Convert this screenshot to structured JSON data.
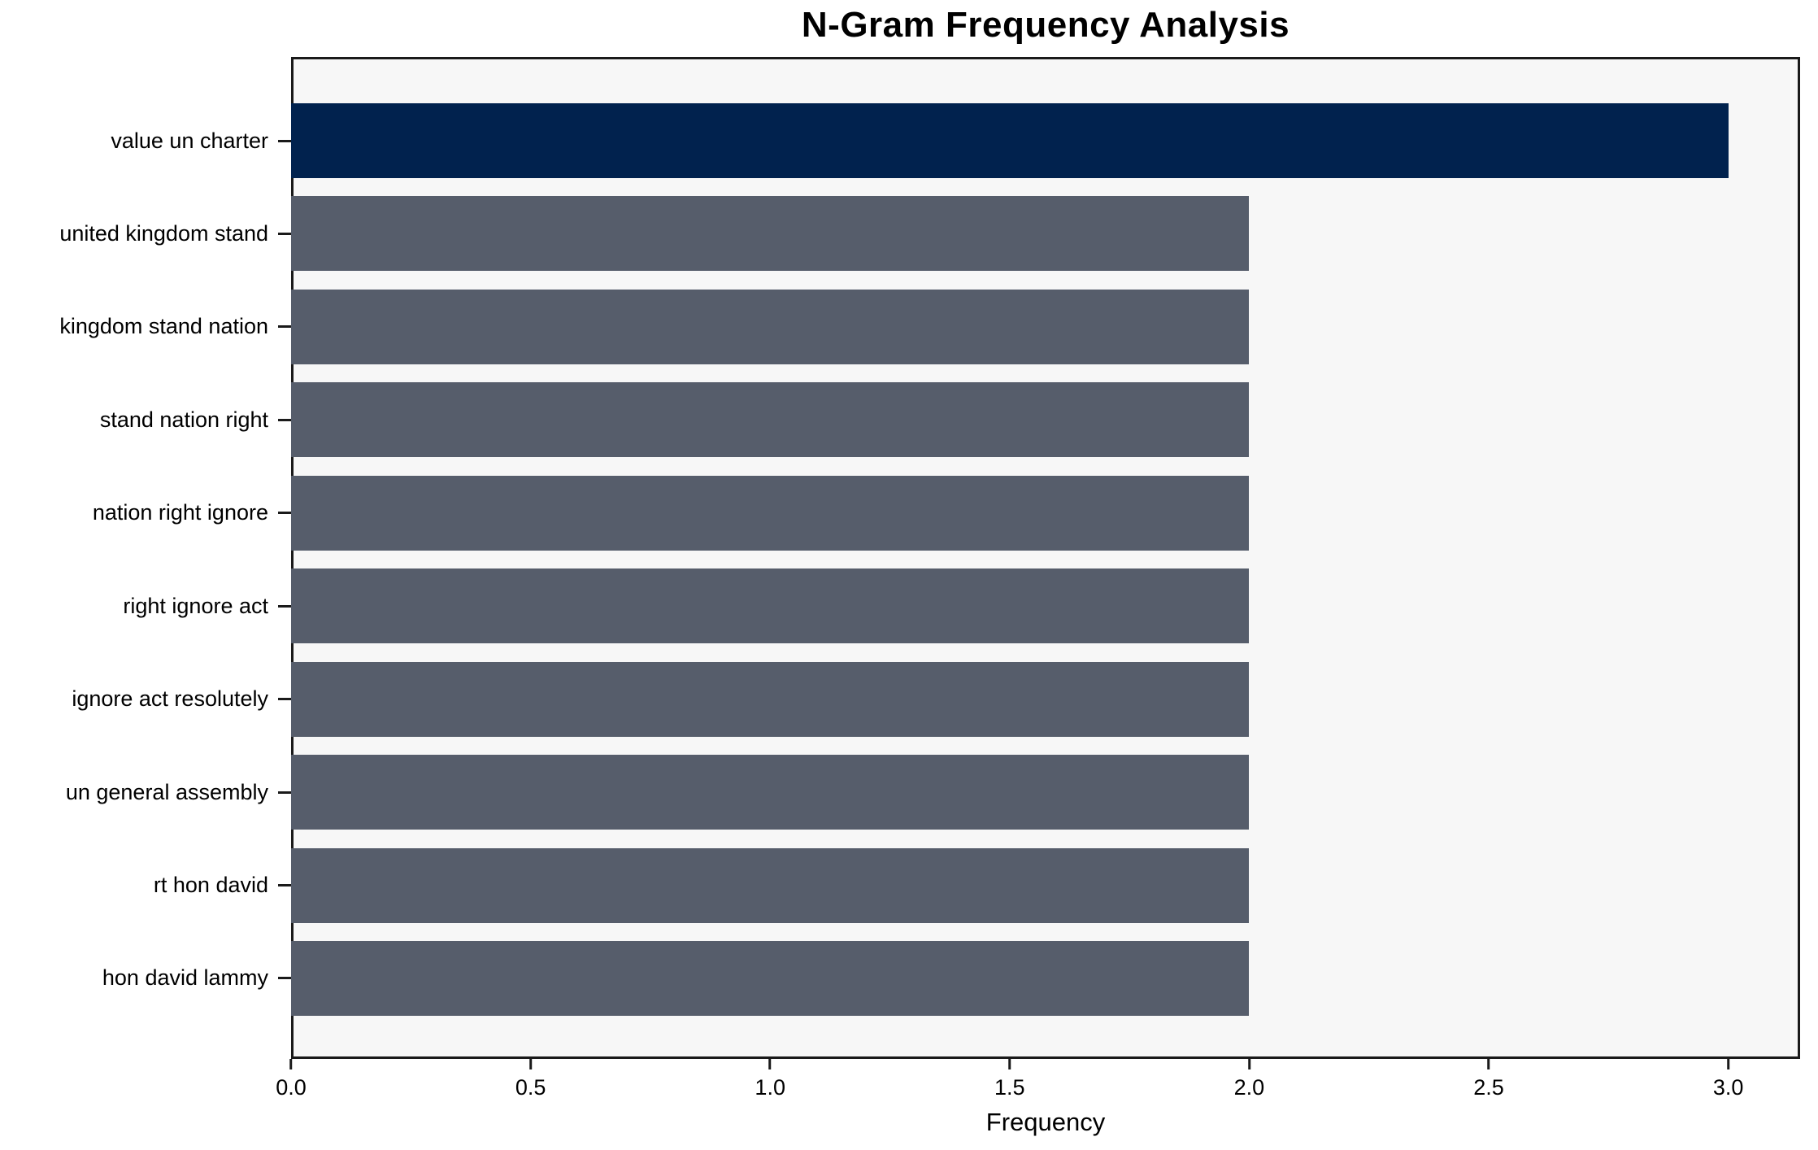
{
  "chart_data": {
    "type": "bar",
    "orientation": "horizontal",
    "title": "N-Gram Frequency Analysis",
    "xlabel": "Frequency",
    "ylabel": "",
    "categories": [
      "value un charter",
      "united kingdom stand",
      "kingdom stand nation",
      "stand nation right",
      "nation right ignore",
      "right ignore act",
      "ignore act resolutely",
      "un general assembly",
      "rt hon david",
      "hon david lammy"
    ],
    "values": [
      3,
      2,
      2,
      2,
      2,
      2,
      2,
      2,
      2,
      2
    ],
    "bar_colors": [
      "#01224e",
      "#565d6b",
      "#565d6b",
      "#565d6b",
      "#565d6b",
      "#565d6b",
      "#565d6b",
      "#565d6b",
      "#565d6b",
      "#565d6b"
    ],
    "xlim": [
      0,
      3.15
    ],
    "xticks": [
      0.0,
      0.5,
      1.0,
      1.5,
      2.0,
      2.5,
      3.0
    ],
    "xtick_labels": [
      "0.0",
      "0.5",
      "1.0",
      "1.5",
      "2.0",
      "2.5",
      "3.0"
    ],
    "grid": false,
    "legend": null,
    "colors": {
      "highlight_bar": "#01224e",
      "default_bar": "#565d6b",
      "plot_background": "#f7f7f7",
      "figure_background": "#ffffff",
      "spine": "#1a1a1a",
      "text": "#000000"
    }
  }
}
